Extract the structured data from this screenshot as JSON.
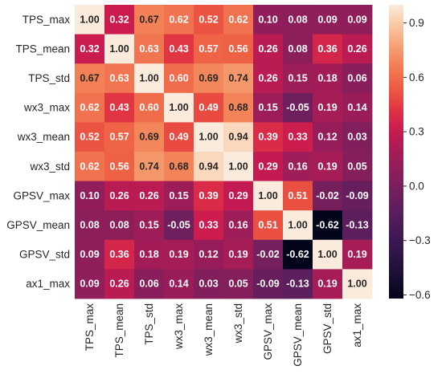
{
  "chart_data": {
    "type": "heatmap",
    "title": "",
    "xlabel": "",
    "ylabel": "",
    "rows": [
      "TPS_max",
      "TPS_mean",
      "TPS_std",
      "wx3_max",
      "wx3_mean",
      "wx3_std",
      "GPSV_max",
      "GPSV_mean",
      "GPSV_std",
      "ax1_max"
    ],
    "columns": [
      "TPS_max",
      "TPS_mean",
      "TPS_std",
      "wx3_max",
      "wx3_mean",
      "wx3_std",
      "GPSV_max",
      "GPSV_mean",
      "GPSV_std",
      "ax1_max"
    ],
    "values": [
      [
        1.0,
        0.32,
        0.67,
        0.62,
        0.52,
        0.62,
        0.1,
        0.08,
        0.09,
        0.09
      ],
      [
        0.32,
        1.0,
        0.63,
        0.43,
        0.57,
        0.56,
        0.26,
        0.08,
        0.36,
        0.26
      ],
      [
        0.67,
        0.63,
        1.0,
        0.6,
        0.69,
        0.74,
        0.26,
        0.15,
        0.18,
        0.06
      ],
      [
        0.62,
        0.43,
        0.6,
        1.0,
        0.49,
        0.68,
        0.15,
        -0.05,
        0.19,
        0.14
      ],
      [
        0.52,
        0.57,
        0.69,
        0.49,
        1.0,
        0.94,
        0.39,
        0.33,
        0.12,
        0.03
      ],
      [
        0.62,
        0.56,
        0.74,
        0.68,
        0.94,
        1.0,
        0.29,
        0.16,
        0.19,
        0.05
      ],
      [
        0.1,
        0.26,
        0.26,
        0.15,
        0.39,
        0.29,
        1.0,
        0.51,
        -0.02,
        -0.09
      ],
      [
        0.08,
        0.08,
        0.15,
        -0.05,
        0.33,
        0.16,
        0.51,
        1.0,
        -0.62,
        -0.13
      ],
      [
        0.09,
        0.36,
        0.18,
        0.19,
        0.12,
        0.19,
        -0.02,
        -0.62,
        1.0,
        0.19
      ],
      [
        0.09,
        0.26,
        0.06,
        0.14,
        0.03,
        0.05,
        -0.09,
        -0.13,
        0.19,
        1.0
      ]
    ],
    "colorbar": {
      "min": -0.62,
      "max": 1.0,
      "ticks": [
        0.9,
        0.6,
        0.3,
        0.0,
        -0.3,
        -0.6
      ],
      "tick_labels": [
        "0.9",
        "0.6",
        "0.3",
        "0.0",
        "−0.3",
        "−0.6"
      ],
      "colormap": "rocket"
    }
  }
}
